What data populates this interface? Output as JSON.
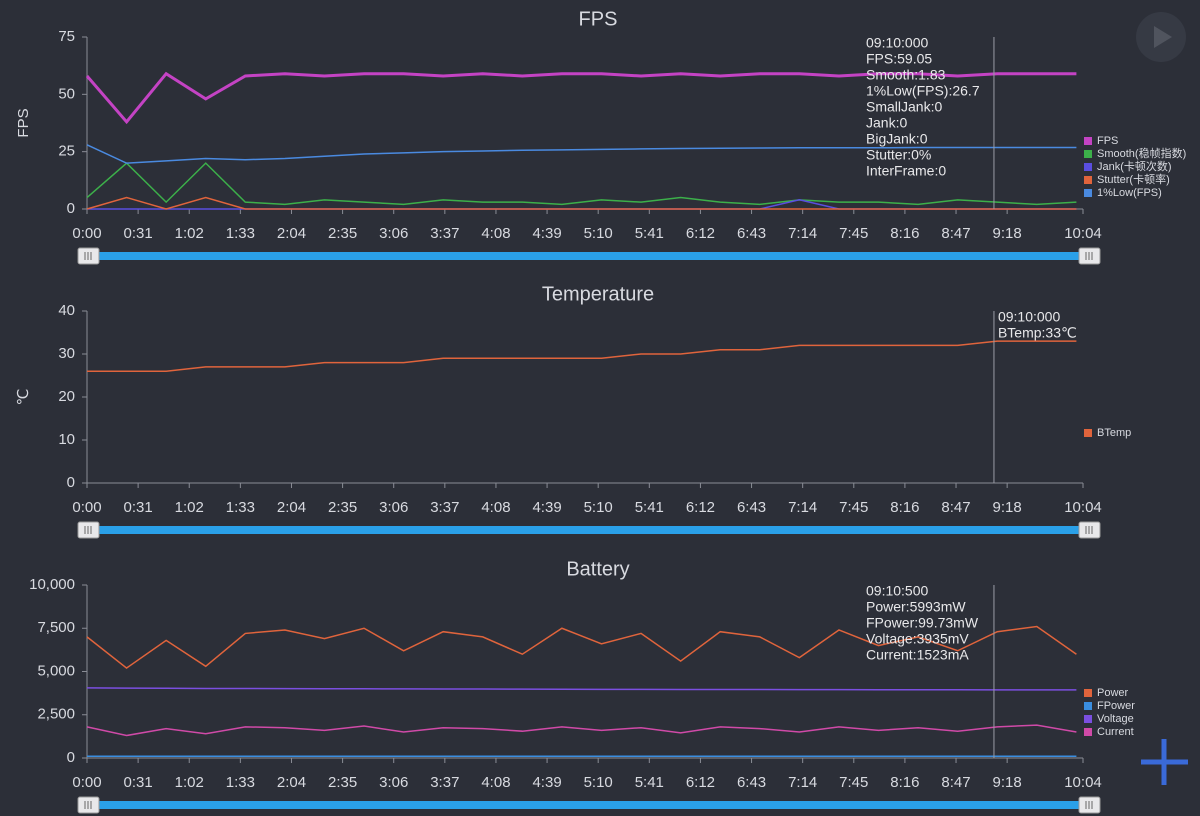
{
  "chart_data": [
    {
      "type": "line",
      "title": "FPS",
      "ylabel": "FPS",
      "x": [
        0,
        24,
        48,
        72,
        96,
        120,
        144,
        168,
        192,
        216,
        240,
        264,
        288,
        312,
        336,
        360,
        384,
        408,
        432,
        456,
        480,
        504,
        528,
        552,
        576,
        600
      ],
      "xlim": [
        0,
        604
      ],
      "xticks": [
        {
          "value": 0,
          "label": "0:00"
        },
        {
          "value": 31,
          "label": "0:31"
        },
        {
          "value": 62,
          "label": "1:02"
        },
        {
          "value": 93,
          "label": "1:33"
        },
        {
          "value": 124,
          "label": "2:04"
        },
        {
          "value": 155,
          "label": "2:35"
        },
        {
          "value": 186,
          "label": "3:06"
        },
        {
          "value": 217,
          "label": "3:37"
        },
        {
          "value": 248,
          "label": "4:08"
        },
        {
          "value": 279,
          "label": "4:39"
        },
        {
          "value": 310,
          "label": "5:10"
        },
        {
          "value": 341,
          "label": "5:41"
        },
        {
          "value": 372,
          "label": "6:12"
        },
        {
          "value": 403,
          "label": "6:43"
        },
        {
          "value": 434,
          "label": "7:14"
        },
        {
          "value": 465,
          "label": "7:45"
        },
        {
          "value": 496,
          "label": "8:16"
        },
        {
          "value": 527,
          "label": "8:47"
        },
        {
          "value": 558,
          "label": "9:18"
        },
        {
          "value": 604,
          "label": "10:04"
        }
      ],
      "ylim": [
        0,
        75
      ],
      "yticks": [
        0,
        25,
        50,
        75
      ],
      "grid": false,
      "legend": "right",
      "series": [
        {
          "name": "FPS",
          "color": "#c443c4",
          "values": [
            58,
            38,
            59,
            48,
            58,
            59,
            58,
            59,
            59,
            58,
            59,
            58,
            59,
            59,
            58,
            59,
            58,
            59,
            59,
            58,
            59,
            59,
            58,
            59,
            59,
            59
          ]
        },
        {
          "name": "Smooth(稳帧指数)",
          "color": "#3cb04a",
          "values": [
            5,
            20,
            3,
            20,
            3,
            2,
            4,
            3,
            2,
            4,
            3,
            3,
            2,
            4,
            3,
            5,
            3,
            2,
            4,
            3,
            3,
            2,
            4,
            3,
            2,
            3
          ]
        },
        {
          "name": "Jank(卡顿次数)",
          "color": "#5a4ee0",
          "values": [
            0,
            0,
            0,
            0,
            0,
            0,
            0,
            0,
            0,
            0,
            0,
            0,
            0,
            0,
            0,
            0,
            0,
            0,
            4,
            0,
            0,
            0,
            0,
            0,
            0,
            0
          ]
        },
        {
          "name": "Stutter(卡顿率)",
          "color": "#e0643c",
          "values": [
            0,
            5,
            0,
            5,
            0,
            0,
            0,
            0,
            0,
            0,
            0,
            0,
            0,
            0,
            0,
            0,
            0,
            0,
            0,
            0,
            0,
            0,
            0,
            0,
            0,
            0
          ]
        },
        {
          "name": "1%Low(FPS)",
          "color": "#4a8ae0",
          "values": [
            28,
            20,
            21,
            22,
            21.5,
            22,
            23,
            24,
            24.5,
            25,
            25.3,
            25.6,
            25.8,
            26,
            26.2,
            26.4,
            26.5,
            26.6,
            26.7,
            26.7,
            26.7,
            26.8,
            26.8,
            26.8,
            26.8,
            26.8
          ]
        }
      ],
      "cursor": {
        "x": 550,
        "labels": [
          "09:10:000",
          "FPS:59.05",
          "Smooth:1.83",
          "1%Low(FPS):26.7",
          "SmallJank:0",
          "Jank:0",
          "BigJank:0",
          "Stutter:0%",
          "InterFrame:0"
        ]
      }
    },
    {
      "type": "line",
      "title": "Temperature",
      "ylabel": "℃",
      "x": [
        0,
        24,
        48,
        72,
        96,
        120,
        144,
        168,
        192,
        216,
        240,
        264,
        288,
        312,
        336,
        360,
        384,
        408,
        432,
        456,
        480,
        504,
        528,
        552,
        576,
        600
      ],
      "xlim": [
        0,
        604
      ],
      "xticks": [
        {
          "value": 0,
          "label": "0:00"
        },
        {
          "value": 31,
          "label": "0:31"
        },
        {
          "value": 62,
          "label": "1:02"
        },
        {
          "value": 93,
          "label": "1:33"
        },
        {
          "value": 124,
          "label": "2:04"
        },
        {
          "value": 155,
          "label": "2:35"
        },
        {
          "value": 186,
          "label": "3:06"
        },
        {
          "value": 217,
          "label": "3:37"
        },
        {
          "value": 248,
          "label": "4:08"
        },
        {
          "value": 279,
          "label": "4:39"
        },
        {
          "value": 310,
          "label": "5:10"
        },
        {
          "value": 341,
          "label": "5:41"
        },
        {
          "value": 372,
          "label": "6:12"
        },
        {
          "value": 403,
          "label": "6:43"
        },
        {
          "value": 434,
          "label": "7:14"
        },
        {
          "value": 465,
          "label": "7:45"
        },
        {
          "value": 496,
          "label": "8:16"
        },
        {
          "value": 527,
          "label": "8:47"
        },
        {
          "value": 558,
          "label": "9:18"
        },
        {
          "value": 604,
          "label": "10:04"
        }
      ],
      "ylim": [
        0,
        40
      ],
      "yticks": [
        0,
        10,
        20,
        30,
        40
      ],
      "grid": false,
      "legend": "right",
      "series": [
        {
          "name": "BTemp",
          "color": "#e0643c",
          "values": [
            26,
            26,
            26,
            27,
            27,
            27,
            28,
            28,
            28,
            29,
            29,
            29,
            29,
            29,
            30,
            30,
            31,
            31,
            32,
            32,
            32,
            32,
            32,
            33,
            33,
            33
          ]
        }
      ],
      "cursor": {
        "x": 550,
        "labels": [
          "09:10:000",
          "BTemp:33℃"
        ]
      }
    },
    {
      "type": "line",
      "title": "Battery",
      "ylabel": null,
      "x": [
        0,
        24,
        48,
        72,
        96,
        120,
        144,
        168,
        192,
        216,
        240,
        264,
        288,
        312,
        336,
        360,
        384,
        408,
        432,
        456,
        480,
        504,
        528,
        552,
        576,
        600
      ],
      "xlim": [
        0,
        604
      ],
      "xticks": [
        {
          "value": 0,
          "label": "0:00"
        },
        {
          "value": 31,
          "label": "0:31"
        },
        {
          "value": 62,
          "label": "1:02"
        },
        {
          "value": 93,
          "label": "1:33"
        },
        {
          "value": 124,
          "label": "2:04"
        },
        {
          "value": 155,
          "label": "2:35"
        },
        {
          "value": 186,
          "label": "3:06"
        },
        {
          "value": 217,
          "label": "3:37"
        },
        {
          "value": 248,
          "label": "4:08"
        },
        {
          "value": 279,
          "label": "4:39"
        },
        {
          "value": 310,
          "label": "5:10"
        },
        {
          "value": 341,
          "label": "5:41"
        },
        {
          "value": 372,
          "label": "6:12"
        },
        {
          "value": 403,
          "label": "6:43"
        },
        {
          "value": 434,
          "label": "7:14"
        },
        {
          "value": 465,
          "label": "7:45"
        },
        {
          "value": 496,
          "label": "8:16"
        },
        {
          "value": 527,
          "label": "8:47"
        },
        {
          "value": 558,
          "label": "9:18"
        },
        {
          "value": 604,
          "label": "10:04"
        }
      ],
      "ylim": [
        0,
        10000
      ],
      "yticks": [
        0,
        {
          "value": 2500,
          "label": "2,500"
        },
        {
          "value": 5000,
          "label": "5,000"
        },
        {
          "value": 7500,
          "label": "7,500"
        },
        {
          "value": 10000,
          "label": "10,000"
        }
      ],
      "grid": false,
      "legend": "right",
      "series": [
        {
          "name": "Power",
          "color": "#e0643c",
          "values": [
            7000,
            5200,
            6800,
            5300,
            7200,
            7400,
            6900,
            7500,
            6200,
            7300,
            7000,
            6000,
            7500,
            6600,
            7200,
            5600,
            7300,
            7000,
            5800,
            7400,
            6500,
            7000,
            6200,
            7300,
            7600,
            6000
          ]
        },
        {
          "name": "FPower",
          "color": "#3a8ee0",
          "values": [
            100,
            100,
            100,
            100,
            100,
            100,
            100,
            100,
            100,
            100,
            100,
            100,
            100,
            100,
            100,
            100,
            100,
            100,
            100,
            100,
            100,
            100,
            100,
            100,
            100,
            100
          ]
        },
        {
          "name": "Voltage",
          "color": "#7b4fe0",
          "values": [
            4050,
            4040,
            4030,
            4020,
            4015,
            4010,
            4005,
            4000,
            3995,
            3990,
            3985,
            3980,
            3975,
            3970,
            3965,
            3962,
            3960,
            3957,
            3955,
            3950,
            3947,
            3945,
            3942,
            3940,
            3937,
            3935
          ]
        },
        {
          "name": "Current",
          "color": "#d04aa8",
          "values": [
            1800,
            1300,
            1700,
            1400,
            1800,
            1750,
            1600,
            1850,
            1500,
            1750,
            1700,
            1550,
            1800,
            1600,
            1750,
            1450,
            1800,
            1700,
            1500,
            1800,
            1600,
            1750,
            1550,
            1800,
            1900,
            1500
          ]
        }
      ],
      "cursor": {
        "x": 550,
        "labels": [
          "09:10:500",
          "Power:5993mW",
          "FPower:99.73mW",
          "Voltage:3935mV",
          "Current:1523mA"
        ]
      }
    }
  ]
}
